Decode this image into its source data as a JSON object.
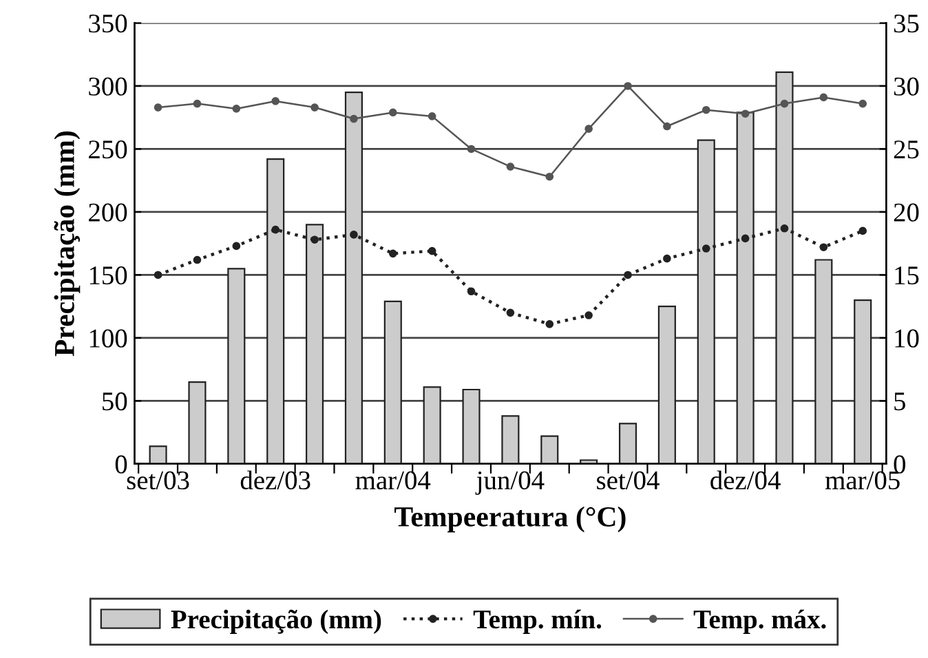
{
  "chart_data": {
    "type": "bar",
    "ylabel": "Precipitação (mm)",
    "xlabel": "Tempeeratura (°C)",
    "categories": [
      "set/03",
      null,
      null,
      "dez/03",
      null,
      null,
      "mar/04",
      null,
      null,
      "jun/04",
      null,
      null,
      "set/04",
      null,
      null,
      "dez/04",
      null,
      null,
      "mar/05"
    ],
    "series": [
      {
        "name": "Precipitação (mm)",
        "color": "#cccccc",
        "values": [
          14,
          65,
          155,
          242,
          190,
          295,
          129,
          61,
          59,
          38,
          22,
          3,
          32,
          125,
          257,
          279,
          311,
          162,
          130
        ]
      },
      {
        "name": "Temp. mín.",
        "type": "line",
        "axis": "y2",
        "color": "#222222",
        "line_style": "dotted",
        "marker": "circle",
        "values": [
          15,
          16.2,
          17.3,
          18.6,
          17.8,
          18.2,
          16.7,
          16.9,
          13.7,
          12.0,
          11.1,
          11.8,
          15.0,
          16.3,
          17.1,
          17.9,
          18.7,
          17.2,
          18.5
        ]
      },
      {
        "name": "Temp. máx.",
        "type": "line",
        "axis": "y2",
        "color": "#555555",
        "line_style": "solid",
        "marker": "circle",
        "values": [
          28.3,
          28.6,
          28.2,
          28.8,
          28.3,
          27.4,
          27.9,
          27.6,
          25.0,
          23.6,
          22.8,
          26.6,
          30.0,
          26.8,
          28.1,
          27.8,
          28.6,
          29.1,
          28.6
        ]
      }
    ],
    "ylim": [
      0,
      350
    ],
    "yticks": [
      0,
      50,
      100,
      150,
      200,
      250,
      300,
      350
    ],
    "y2lim": [
      0,
      35
    ],
    "y2ticks": [
      0,
      5,
      10,
      15,
      20,
      25,
      30,
      35
    ],
    "grid": "y",
    "legend": "bottom"
  }
}
